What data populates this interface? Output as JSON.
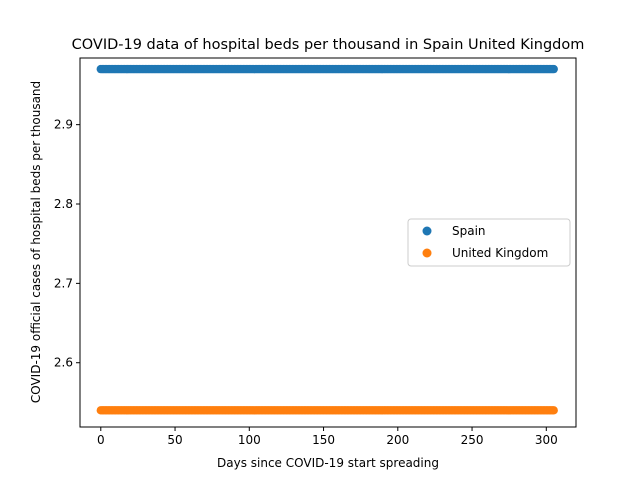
{
  "chart_data": {
    "type": "scatter",
    "title": "COVID-19 data of hospital beds per thousand in Spain United Kingdom",
    "xlabel": "Days since COVID-19 start spreading",
    "ylabel": "COVID-19 official cases of hospital beds per thousand",
    "xlim": [
      -14,
      320
    ],
    "ylim": [
      2.519,
      2.984
    ],
    "xticks": [
      0,
      50,
      100,
      150,
      200,
      250,
      300
    ],
    "yticks": [
      2.6,
      2.7,
      2.8,
      2.9
    ],
    "ytick_labels": [
      "2.6",
      "2.7",
      "2.8",
      "2.9"
    ],
    "grid": false,
    "legend_position": "center-right",
    "series": [
      {
        "name": "Spain",
        "color": "#1f77b4",
        "x_start": 0,
        "x_end": 305,
        "y": 2.97
      },
      {
        "name": "United Kingdom",
        "color": "#ff7f0e",
        "x_start": 0,
        "x_end": 305,
        "y": 2.54
      }
    ]
  }
}
